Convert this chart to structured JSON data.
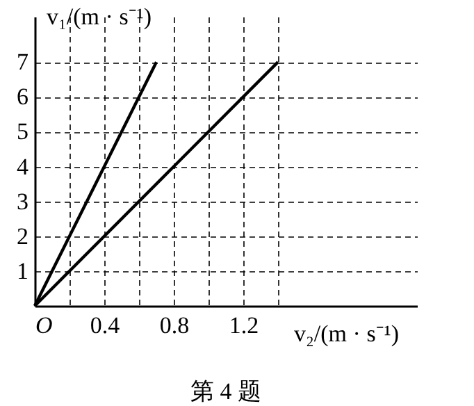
{
  "chart_data": {
    "type": "line",
    "xlabel": "v₂/(m · s⁻¹)",
    "ylabel": "v₁/(m · s⁻¹)",
    "annotations": [
      "第 4 题"
    ],
    "xlim": [
      0,
      2.2
    ],
    "ylim": [
      0,
      8.3
    ],
    "xticks": [
      {
        "value": 0,
        "label": "O"
      },
      {
        "value": 0.2,
        "label": null
      },
      0.4,
      {
        "value": 0.6,
        "label": null
      },
      0.8,
      {
        "value": 1.0,
        "label": null
      },
      1.2,
      {
        "value": 1.4,
        "label": null
      }
    ],
    "yticks": [
      1,
      2,
      3,
      4,
      5,
      6,
      7
    ],
    "grid": true,
    "marker": "none",
    "line_style": "solid",
    "series": [
      {
        "color": "#000000",
        "x": [
          0,
          0.7
        ],
        "values": [
          0,
          7
        ]
      },
      {
        "color": "#000000",
        "x": [
          0,
          1.4
        ],
        "values": [
          0,
          7
        ]
      }
    ]
  }
}
